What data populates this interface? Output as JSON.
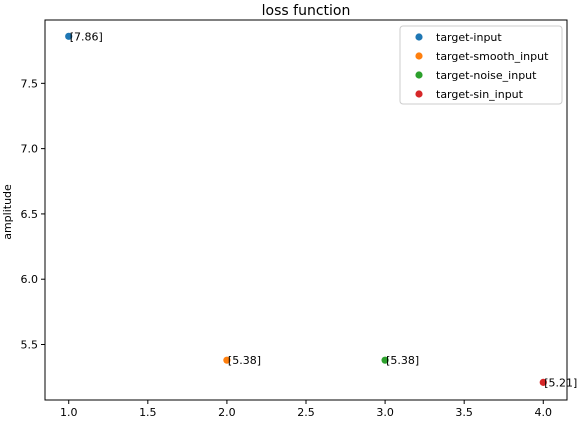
{
  "chart_data": {
    "type": "scatter",
    "title": "loss function",
    "xlabel": "",
    "ylabel": "amplitude",
    "xlim": [
      0.85,
      4.15
    ],
    "ylim": [
      5.075,
      7.985
    ],
    "xticks": [
      1.0,
      1.5,
      2.0,
      2.5,
      3.0,
      3.5,
      4.0
    ],
    "xtick_labels": [
      "1.0",
      "1.5",
      "2.0",
      "2.5",
      "3.0",
      "3.5",
      "4.0"
    ],
    "yticks": [
      5.5,
      6.0,
      6.5,
      7.0,
      7.5
    ],
    "ytick_labels": [
      "5.5",
      "6.0",
      "6.5",
      "7.0",
      "7.5"
    ],
    "grid": false,
    "legend_position": "top-right",
    "series": [
      {
        "name": "target-input",
        "color": "#1f77b4",
        "x": [
          1.0
        ],
        "y": [
          7.86
        ],
        "label": "[7.86]"
      },
      {
        "name": "target-smooth_input",
        "color": "#ff7f0e",
        "x": [
          2.0
        ],
        "y": [
          5.38
        ],
        "label": "[5.38]"
      },
      {
        "name": "target-noise_input",
        "color": "#2ca02c",
        "x": [
          3.0
        ],
        "y": [
          5.38
        ],
        "label": "[5.38]"
      },
      {
        "name": "target-sin_input",
        "color": "#d62728",
        "x": [
          4.0
        ],
        "y": [
          5.21
        ],
        "label": "[5.21]"
      }
    ]
  }
}
